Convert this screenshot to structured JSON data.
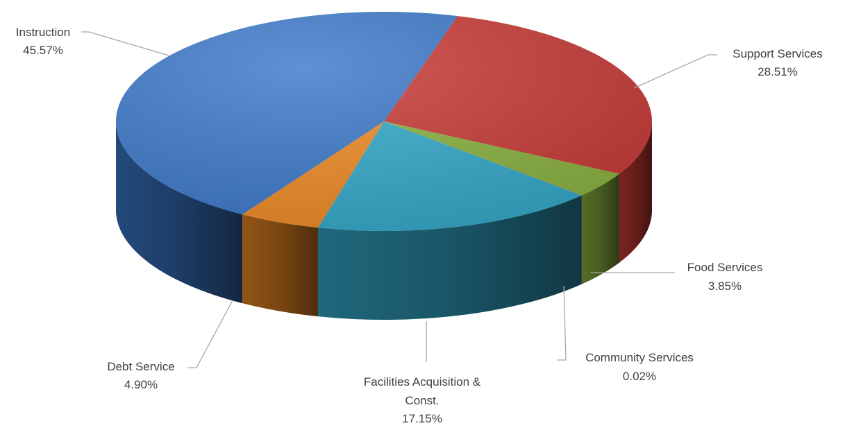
{
  "chart_data": {
    "type": "pie",
    "title": "",
    "slices": [
      {
        "label": "Instruction",
        "value": 45.57,
        "value_label": "45.57%",
        "color": "#3b78c9"
      },
      {
        "label": "Support Services",
        "value": 28.51,
        "value_label": "28.51%",
        "color": "#c93a36"
      },
      {
        "label": "Food Services",
        "value": 3.85,
        "value_label": "3.85%",
        "color": "#8bb33f"
      },
      {
        "label": "Community Services",
        "value": 0.02,
        "value_label": "0.02%",
        "color": "#6b3fa0"
      },
      {
        "label": "Facilities Acquisition & Const.",
        "value": 17.15,
        "value_label": "17.15%",
        "color": "#33aacb"
      },
      {
        "label": "Debt Service",
        "value": 4.9,
        "value_label": "4.90%",
        "color": "#f08a24"
      }
    ],
    "style": "3d-pie",
    "legend": "none (labels on leader lines)"
  }
}
